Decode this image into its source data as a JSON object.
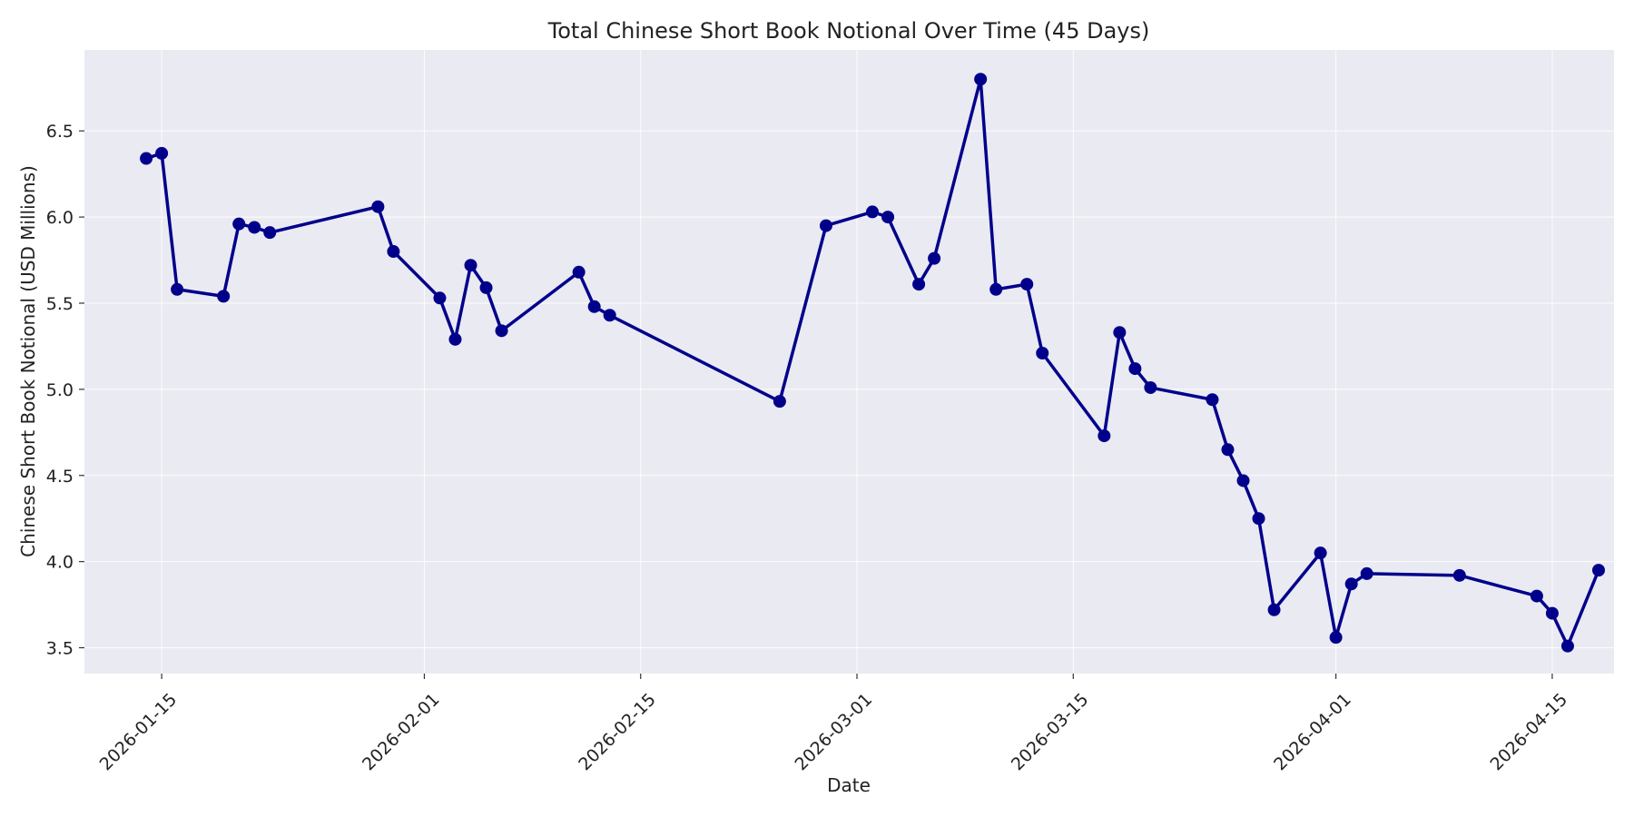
{
  "chart_data": {
    "type": "line",
    "title": "Total Chinese Short Book Notional Over Time (45 Days)",
    "xlabel": "Date",
    "ylabel": "Chinese Short Book Notional (USD Millions)",
    "x_scale": "date",
    "xlim": [
      "2026-01-10",
      "2026-04-19"
    ],
    "ylim": [
      3.35,
      6.97
    ],
    "grid": true,
    "legend": "none",
    "x_ticks": [
      "2026-01-15",
      "2026-02-01",
      "2026-02-15",
      "2026-03-01",
      "2026-03-15",
      "2026-04-01",
      "2026-04-15"
    ],
    "y_ticks": [
      "3.5",
      "4.0",
      "4.5",
      "5.0",
      "5.5",
      "6.0",
      "6.5"
    ],
    "colors": {
      "series": "#00008b",
      "plot_background": "#eaeaf2",
      "grid": "#ffffff"
    },
    "series": [
      {
        "x": [
          "2026-01-14",
          "2026-01-15",
          "2026-01-16",
          "2026-01-19",
          "2026-01-20",
          "2026-01-21",
          "2026-01-22",
          "2026-01-29",
          "2026-01-30",
          "2026-02-02",
          "2026-02-03",
          "2026-02-04",
          "2026-02-05",
          "2026-02-06",
          "2026-02-11",
          "2026-02-12",
          "2026-02-13",
          "2026-02-24",
          "2026-02-27",
          "2026-03-02",
          "2026-03-03",
          "2026-03-05",
          "2026-03-06",
          "2026-03-09",
          "2026-03-10",
          "2026-03-12",
          "2026-03-13",
          "2026-03-17",
          "2026-03-18",
          "2026-03-19",
          "2026-03-20",
          "2026-03-24",
          "2026-03-25",
          "2026-03-26",
          "2026-03-27",
          "2026-03-28",
          "2026-03-31",
          "2026-04-01",
          "2026-04-02",
          "2026-04-03",
          "2026-04-09",
          "2026-04-14",
          "2026-04-15",
          "2026-04-16",
          "2026-04-18"
        ],
        "values": [
          6.34,
          6.37,
          5.58,
          5.54,
          5.96,
          5.94,
          5.91,
          6.06,
          5.8,
          5.53,
          5.29,
          5.72,
          5.59,
          5.34,
          5.68,
          5.48,
          5.43,
          4.93,
          5.95,
          6.03,
          6.0,
          5.61,
          5.76,
          6.8,
          5.58,
          5.61,
          5.21,
          4.73,
          5.33,
          5.12,
          5.01,
          4.94,
          4.65,
          4.47,
          4.25,
          3.72,
          4.05,
          3.56,
          3.87,
          3.93,
          3.92,
          3.8,
          3.7,
          3.51,
          3.95
        ]
      }
    ]
  }
}
